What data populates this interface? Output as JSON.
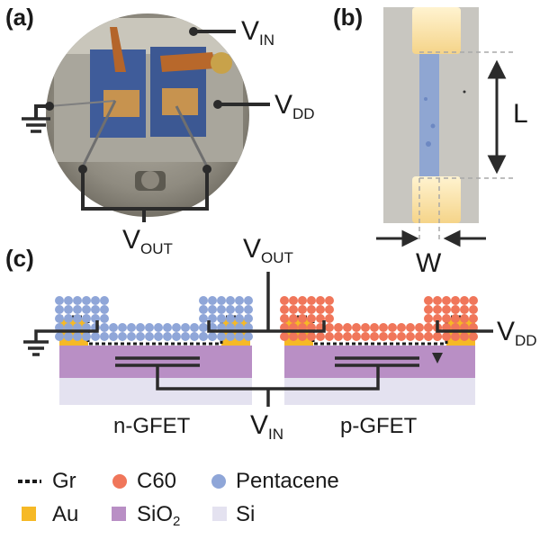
{
  "panels": {
    "a": "(a)",
    "b": "(b)",
    "c": "(c)"
  },
  "signals": {
    "vin": {
      "main": "V",
      "sub": "IN"
    },
    "vdd": {
      "main": "V",
      "sub": "DD"
    },
    "vout": {
      "main": "V",
      "sub": "OUT"
    }
  },
  "dims": {
    "length": "L",
    "width": "W"
  },
  "devices": {
    "n": "n-GFET",
    "p": "p-GFET"
  },
  "legend": {
    "gr": "Gr",
    "au": "Au",
    "c60": "C60",
    "sio2_main": "SiO",
    "sio2_sub": "2",
    "pentacene": "Pentacene",
    "si": "Si"
  },
  "colors": {
    "au": "#f6b926",
    "sio2": "#b98fc5",
    "si": "#e4e2f0",
    "c60": "#f0765a",
    "pentacene": "#8fa6d8",
    "wire": "#2b2b2b"
  }
}
